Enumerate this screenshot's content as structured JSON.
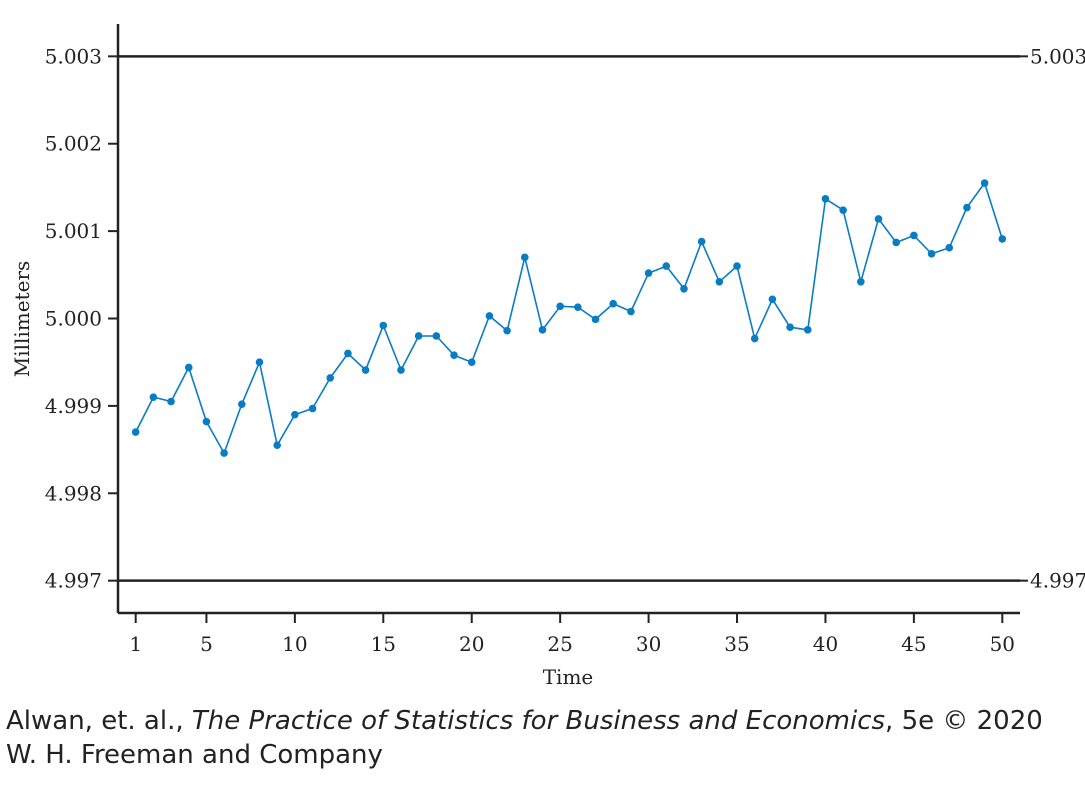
{
  "chart_data": {
    "type": "line",
    "xlabel": "Time",
    "ylabel": "Millimeters",
    "xlim": [
      0,
      51
    ],
    "ylim": [
      4.99663,
      5.00337
    ],
    "x_ticks": [
      1,
      5,
      10,
      15,
      20,
      25,
      30,
      35,
      40,
      45,
      50
    ],
    "y_ticks": [
      4.997,
      4.998,
      4.999,
      5.0,
      5.001,
      5.002,
      5.003
    ],
    "control_limits": [
      {
        "value": 5.003,
        "label": "5.003"
      },
      {
        "value": 4.997,
        "label": "4.997"
      }
    ],
    "series": [
      {
        "color": "#0a7cc2",
        "x": [
          1,
          2,
          3,
          4,
          5,
          6,
          7,
          8,
          9,
          10,
          11,
          12,
          13,
          14,
          15,
          16,
          17,
          18,
          19,
          20,
          21,
          22,
          23,
          24,
          25,
          26,
          27,
          28,
          29,
          30,
          31,
          32,
          33,
          34,
          35,
          36,
          37,
          38,
          39,
          40,
          41,
          42,
          43,
          44,
          45,
          46,
          47,
          48,
          49,
          50
        ],
        "values": [
          4.9987,
          4.9991,
          4.99905,
          4.99944,
          4.99882,
          4.99846,
          4.99902,
          4.9995,
          4.99855,
          4.9989,
          4.99897,
          4.99932,
          4.9996,
          4.99941,
          4.99992,
          4.99941,
          4.9998,
          4.9998,
          4.99958,
          4.9995,
          5.00003,
          4.99986,
          5.0007,
          4.99987,
          5.00014,
          5.00013,
          4.99999,
          5.00017,
          5.00008,
          5.00052,
          5.0006,
          5.00034,
          5.00088,
          5.00042,
          5.0006,
          4.99977,
          5.00022,
          4.9999,
          4.99987,
          5.00137,
          5.00124,
          5.00042,
          5.00114,
          5.00087,
          5.00095,
          5.00074,
          5.00081,
          5.00127,
          5.00155,
          5.00091
        ]
      }
    ]
  },
  "caption": {
    "line1_prefix": "Alwan, et. al., ",
    "line1_title": "The Practice of Statistics for Business and Economics",
    "line1_suffix": ", 5e © 2020",
    "line2": "W. H. Freeman and Company"
  }
}
